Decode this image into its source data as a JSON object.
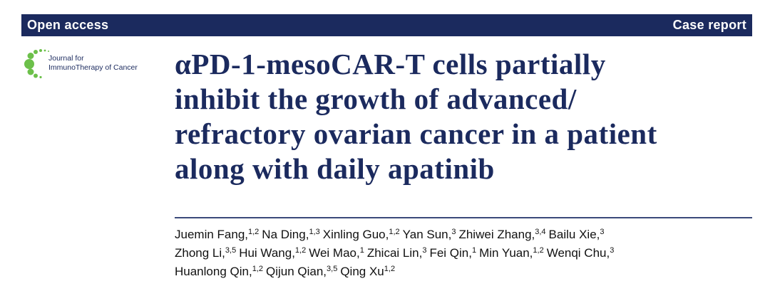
{
  "header": {
    "left": "Open access",
    "right": "Case report"
  },
  "journal": {
    "line1": "Journal for",
    "line2": "ImmunoTherapy of Cancer"
  },
  "title": {
    "lines": [
      "αPD-1-mesoCAR-T cells partially",
      "inhibit the growth of advanced/",
      "refractory ovarian cancer in a patient",
      "along with daily apatinib"
    ]
  },
  "authors": {
    "lines": [
      [
        {
          "name": "Juemin Fang,",
          "sup": "1,2"
        },
        {
          "name": "Na Ding,",
          "sup": "1,3"
        },
        {
          "name": "Xinling Guo,",
          "sup": "1,2"
        },
        {
          "name": "Yan Sun,",
          "sup": "3"
        },
        {
          "name": "Zhiwei Zhang,",
          "sup": "3,4"
        },
        {
          "name": "Bailu Xie,",
          "sup": "3"
        }
      ],
      [
        {
          "name": "Zhong Li,",
          "sup": "3,5"
        },
        {
          "name": "Hui Wang,",
          "sup": "1,2"
        },
        {
          "name": "Wei Mao,",
          "sup": "1"
        },
        {
          "name": "Zhicai Lin,",
          "sup": "3"
        },
        {
          "name": "Fei Qin,",
          "sup": "1"
        },
        {
          "name": "Min Yuan,",
          "sup": "1,2"
        },
        {
          "name": "Wenqi Chu,",
          "sup": "3"
        }
      ],
      [
        {
          "name": "Huanlong Qin,",
          "sup": "1,2"
        },
        {
          "name": "Qijun Qian,",
          "sup": "3,5"
        },
        {
          "name": "Qing Xu",
          "sup": "1,2"
        }
      ]
    ]
  }
}
